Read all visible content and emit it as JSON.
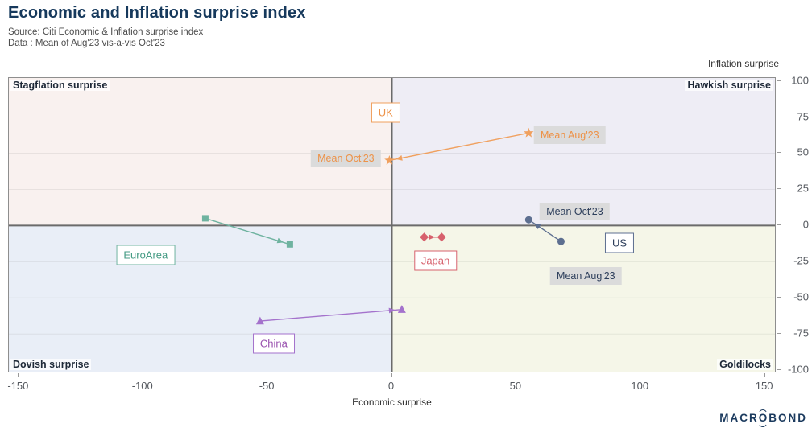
{
  "header": {
    "title": "Economic and Inflation surprise index",
    "subtitle1": "Source: Citi Economic & Inflation surprise index",
    "subtitle2": "Data : Mean of Aug'23 vis-a-vis Oct'23"
  },
  "footer": {
    "logo_pre": "MACR",
    "logo_o": "O",
    "logo_post": "BOND"
  },
  "chart_data": {
    "type": "scatter",
    "title": "Economic and Inflation surprise index",
    "xlabel": "Economic surprise",
    "ylabel": "Inflation surprise",
    "xlim": [
      -154,
      154
    ],
    "ylim": [
      -101,
      102
    ],
    "x_ticks": [
      -150,
      -100,
      -50,
      0,
      50,
      100,
      150
    ],
    "y_ticks": [
      100,
      75,
      50,
      25,
      0,
      -25,
      -50,
      -75,
      -100
    ],
    "grid_y": [
      75,
      50,
      25,
      -25,
      -50,
      -75
    ],
    "grid_on": true,
    "legend_position": "none",
    "axis_color": "#6B6B6B",
    "border_color": "#8E8E8E",
    "quadrants": {
      "top_left": {
        "label": "Stagflation surprise",
        "color": "#F9F1EF"
      },
      "top_right": {
        "label": "Hawkish surprise",
        "color": "#EEEDF5"
      },
      "bottom_left": {
        "label": "Dovish surprise",
        "color": "#E9EEF7"
      },
      "bottom_right": {
        "label": "Goldilocks",
        "color": "#F5F6E8"
      }
    },
    "series": [
      {
        "name": "UK",
        "marker": "star",
        "color": "#F0A05E",
        "label_color": "#ED9248",
        "points": [
          {
            "period": "Mean Aug'23",
            "x": 55,
            "y": 64
          },
          {
            "period": "Mean Oct'23",
            "x": -1,
            "y": 45
          }
        ],
        "name_label": {
          "x": -2.5,
          "y": 78
        },
        "point_labels": [
          {
            "text": "Mean Aug'23",
            "x": 71.5,
            "y": 62.5
          },
          {
            "text": "Mean Oct'23",
            "x": -18.5,
            "y": 46.5
          }
        ]
      },
      {
        "name": "US",
        "marker": "circle",
        "color": "#5D6F90",
        "label_color": "#2E3F5C",
        "points": [
          {
            "period": "Mean Aug'23",
            "x": 68,
            "y": -11
          },
          {
            "period": "Mean Oct'23",
            "x": 55,
            "y": 4
          }
        ],
        "name_label": {
          "x": 91.5,
          "y": -12
        },
        "point_labels": [
          {
            "text": "Mean Aug'23",
            "x": 78,
            "y": -35
          },
          {
            "text": "Mean Oct'23",
            "x": 73.5,
            "y": 9.5
          }
        ]
      },
      {
        "name": "Japan",
        "marker": "diamond",
        "color": "#D7616D",
        "label_color": "#D7616D",
        "points": [
          {
            "period": "Mean Aug'23",
            "x": 13,
            "y": -8
          },
          {
            "period": "Mean Oct'23",
            "x": 20,
            "y": -8
          }
        ],
        "name_label": {
          "x": 17.5,
          "y": -24.5
        },
        "point_labels": []
      },
      {
        "name": "China",
        "marker": "triangle",
        "color": "#A472CC",
        "label_color": "#9850AE",
        "points": [
          {
            "period": "Mean Aug'23",
            "x": -53,
            "y": -66
          },
          {
            "period": "Mean Oct'23",
            "x": 4,
            "y": -58
          }
        ],
        "name_label": {
          "x": -47.5,
          "y": -81.5
        },
        "point_labels": []
      },
      {
        "name": "EuroArea",
        "marker": "square",
        "color": "#6FB3A0",
        "label_color": "#459B84",
        "points": [
          {
            "period": "Mean Aug'23",
            "x": -75,
            "y": 5
          },
          {
            "period": "Mean Oct'23",
            "x": -41,
            "y": -13
          }
        ],
        "name_label": {
          "x": -99,
          "y": -20.5
        },
        "point_labels": []
      }
    ]
  }
}
